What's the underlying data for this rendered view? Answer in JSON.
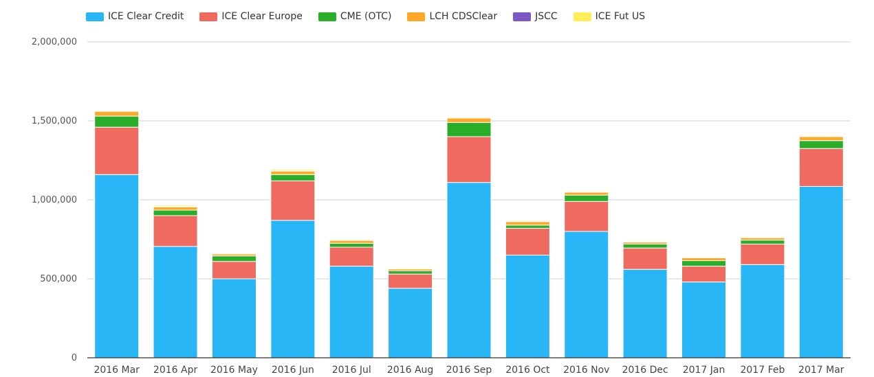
{
  "chart_data": {
    "type": "bar",
    "stacked": true,
    "categories": [
      "2016 Mar",
      "2016 Apr",
      "2016 May",
      "2016 Jun",
      "2016 Jul",
      "2016 Aug",
      "2016 Sep",
      "2016 Oct",
      "2016 Nov",
      "2016 Dec",
      "2017 Jan",
      "2017 Feb",
      "2017 Mar"
    ],
    "series": [
      {
        "name": "ICE Clear Credit",
        "color": "#29b6f6",
        "values": [
          1160000,
          705000,
          500000,
          870000,
          580000,
          440000,
          1110000,
          650000,
          800000,
          560000,
          480000,
          590000,
          1085000
        ]
      },
      {
        "name": "ICE Clear Europe",
        "color": "#ef6b5f",
        "values": [
          300000,
          195000,
          110000,
          250000,
          120000,
          90000,
          290000,
          170000,
          190000,
          135000,
          100000,
          130000,
          240000
        ]
      },
      {
        "name": "CME (OTC)",
        "color": "#2aae2a",
        "values": [
          70000,
          35000,
          35000,
          40000,
          25000,
          20000,
          90000,
          20000,
          40000,
          25000,
          35000,
          25000,
          50000
        ]
      },
      {
        "name": "LCH CDSClear",
        "color": "#ffa726",
        "values": [
          30000,
          20000,
          12000,
          22000,
          18000,
          12000,
          28000,
          22000,
          18000,
          12000,
          18000,
          15000,
          25000
        ]
      },
      {
        "name": "JSCC",
        "color": "#7e57c2",
        "values": [
          2000,
          2000,
          2000,
          2000,
          2000,
          2000,
          2000,
          2000,
          2000,
          2000,
          2000,
          2000,
          2000
        ]
      },
      {
        "name": "ICE Fut US",
        "color": "#ffee58",
        "values": [
          5000,
          8000,
          5000,
          8000,
          5000,
          5000,
          5000,
          5000,
          5000,
          5000,
          5000,
          5000,
          5000
        ]
      }
    ],
    "ylim": [
      0,
      2000000
    ],
    "yticks": [
      0,
      500000,
      1000000,
      1500000,
      2000000
    ],
    "ytick_labels": [
      "0",
      "500,000",
      "1,000,000",
      "1,500,000",
      "2,000,000"
    ],
    "grid": true,
    "legend_position": "top-left"
  }
}
